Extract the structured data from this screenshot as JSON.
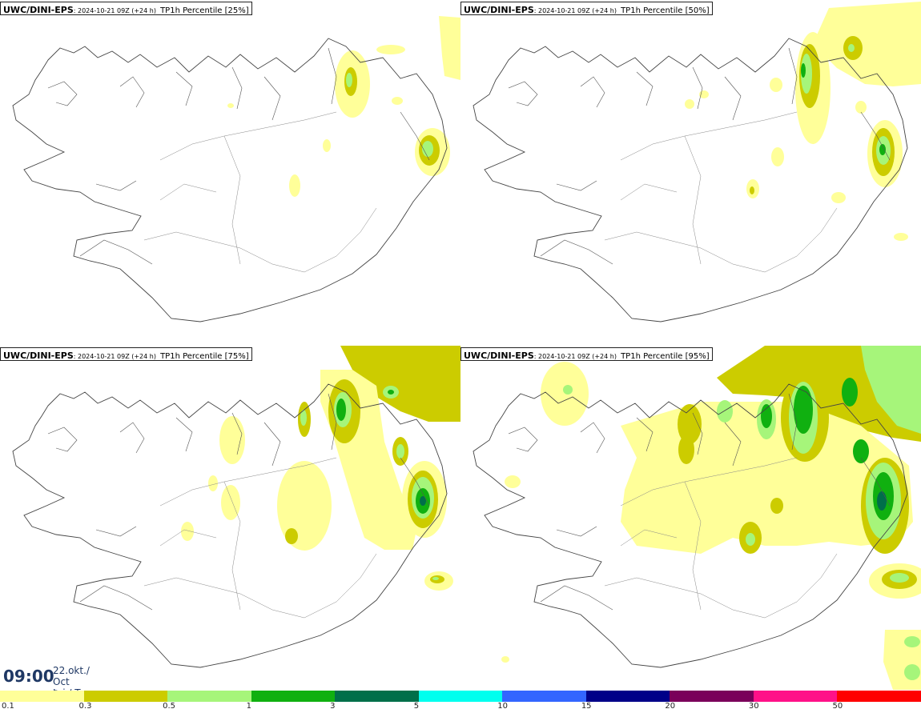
{
  "panels": [
    {
      "model": "UWC/DINI-EPS",
      "run": ": 2024-10-21 09Z (+24 h)",
      "param": "TP1h Percentile [25%]"
    },
    {
      "model": "UWC/DINI-EPS",
      "run": ": 2024-10-21 09Z (+24 h)",
      "param": "TP1h Percentile [50%]"
    },
    {
      "model": "UWC/DINI-EPS",
      "run": ": 2024-10-21 09Z (+24 h)",
      "param": "TP1h Percentile [75%]"
    },
    {
      "model": "UWC/DINI-EPS",
      "run": ": 2024-10-21 09Z (+24 h)",
      "param": "TP1h Percentile [95%]"
    }
  ],
  "valid_time": {
    "hour": "09:00",
    "date_line1": "22.okt./ Oct",
    "date_line2": "Þri./ Tue"
  },
  "legend": {
    "ticks": [
      "0.1",
      "0.3",
      "0.5",
      "1",
      "3",
      "5",
      "10",
      "15",
      "20",
      "30",
      "50"
    ],
    "colors": [
      "#ffff99",
      "#cccc00",
      "#a6f57a",
      "#10b010",
      "#006f4a",
      "#00ffee",
      "#3366ff",
      "#000088",
      "#7a005a",
      "#ff1188",
      "#ff0000"
    ]
  }
}
